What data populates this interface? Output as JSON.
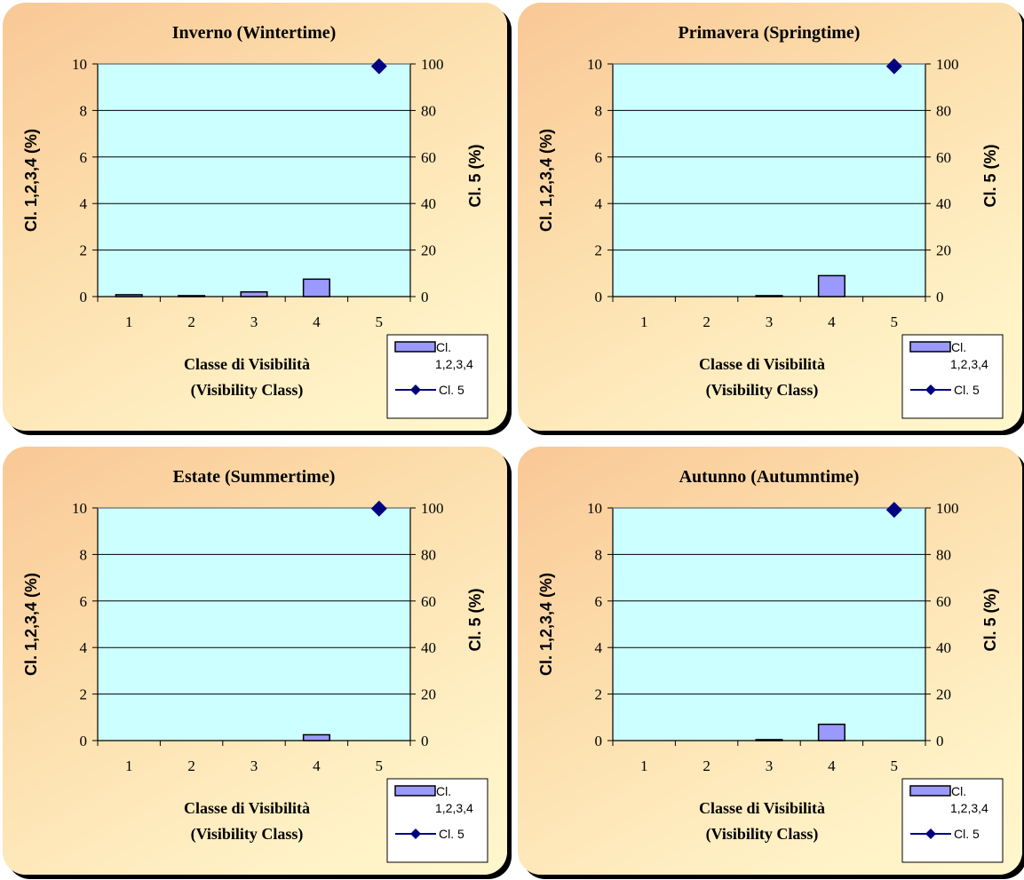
{
  "colors": {
    "plot_bg": "#ccffff",
    "bar_fill": "#9999ff",
    "diamond": "#000080",
    "panel_light": "#fff6cc",
    "panel_dark": "#f9c896"
  },
  "chart_data": [
    {
      "type": "bar",
      "title": "Inverno (Wintertime)",
      "xlabel_line1": "Classe di Visibilità",
      "xlabel_line2": "(Visibility Class)",
      "ylabel_left": "Cl. 1,2,3,4 (%)",
      "ylabel_right": "Cl. 5 (%)",
      "categories": [
        "1",
        "2",
        "3",
        "4",
        "5"
      ],
      "ylim_left": [
        0,
        10
      ],
      "ylim_right": [
        0,
        100
      ],
      "yticks_left": [
        "0",
        "2",
        "4",
        "6",
        "8",
        "10"
      ],
      "yticks_right": [
        "0",
        "20",
        "40",
        "60",
        "80",
        "100"
      ],
      "grid": true,
      "legend_position": "bottom-right",
      "series": [
        {
          "name": "Cl. 1,2,3,4",
          "kind": "bar",
          "axis": "left",
          "values": [
            0.08,
            0.04,
            0.2,
            0.75,
            0
          ]
        },
        {
          "name": "Cl. 5",
          "kind": "line-marker",
          "axis": "right",
          "values": [
            null,
            null,
            null,
            null,
            99
          ]
        }
      ]
    },
    {
      "type": "bar",
      "title": "Primavera (Springtime)",
      "xlabel_line1": "Classe di Visibilità",
      "xlabel_line2": "(Visibility Class)",
      "ylabel_left": "Cl. 1,2,3,4 (%)",
      "ylabel_right": "Cl. 5 (%)",
      "categories": [
        "1",
        "2",
        "3",
        "4",
        "5"
      ],
      "ylim_left": [
        0,
        10
      ],
      "ylim_right": [
        0,
        100
      ],
      "yticks_left": [
        "0",
        "2",
        "4",
        "6",
        "8",
        "10"
      ],
      "yticks_right": [
        "0",
        "20",
        "40",
        "60",
        "80",
        "100"
      ],
      "grid": true,
      "legend_position": "bottom-right",
      "series": [
        {
          "name": "Cl. 1,2,3,4",
          "kind": "bar",
          "axis": "left",
          "values": [
            0,
            0,
            0.04,
            0.9,
            0
          ]
        },
        {
          "name": "Cl. 5",
          "kind": "line-marker",
          "axis": "right",
          "values": [
            null,
            null,
            null,
            null,
            99
          ]
        }
      ]
    },
    {
      "type": "bar",
      "title": "Estate (Summertime)",
      "xlabel_line1": "Classe di Visibilità",
      "xlabel_line2": "(Visibility Class)",
      "ylabel_left": "Cl. 1,2,3,4 (%)",
      "ylabel_right": "Cl. 5 (%)",
      "categories": [
        "1",
        "2",
        "3",
        "4",
        "5"
      ],
      "ylim_left": [
        0,
        10
      ],
      "ylim_right": [
        0,
        100
      ],
      "yticks_left": [
        "0",
        "2",
        "4",
        "6",
        "8",
        "10"
      ],
      "yticks_right": [
        "0",
        "20",
        "40",
        "60",
        "80",
        "100"
      ],
      "grid": true,
      "legend_position": "bottom-right",
      "series": [
        {
          "name": "Cl. 1,2,3,4",
          "kind": "bar",
          "axis": "left",
          "values": [
            0,
            0,
            0,
            0.25,
            0
          ]
        },
        {
          "name": "Cl. 5",
          "kind": "line-marker",
          "axis": "right",
          "values": [
            null,
            null,
            null,
            null,
            99.7
          ]
        }
      ]
    },
    {
      "type": "bar",
      "title": "Autunno (Autumntime)",
      "xlabel_line1": "Classe di Visibilità",
      "xlabel_line2": "(Visibility Class)",
      "ylabel_left": "Cl. 1,2,3,4 (%)",
      "ylabel_right": "Cl. 5 (%)",
      "categories": [
        "1",
        "2",
        "3",
        "4",
        "5"
      ],
      "ylim_left": [
        0,
        10
      ],
      "ylim_right": [
        0,
        100
      ],
      "yticks_left": [
        "0",
        "2",
        "4",
        "6",
        "8",
        "10"
      ],
      "yticks_right": [
        "0",
        "20",
        "40",
        "60",
        "80",
        "100"
      ],
      "grid": true,
      "legend_position": "bottom-right",
      "series": [
        {
          "name": "Cl. 1,2,3,4",
          "kind": "bar",
          "axis": "left",
          "values": [
            0,
            0,
            0.04,
            0.7,
            0
          ]
        },
        {
          "name": "Cl. 5",
          "kind": "line-marker",
          "axis": "right",
          "values": [
            null,
            null,
            null,
            null,
            99.2
          ]
        }
      ]
    }
  ],
  "legend": {
    "bar_label_line1": "Cl.",
    "bar_label_line2": "1,2,3,4",
    "marker_label": "Cl. 5"
  }
}
